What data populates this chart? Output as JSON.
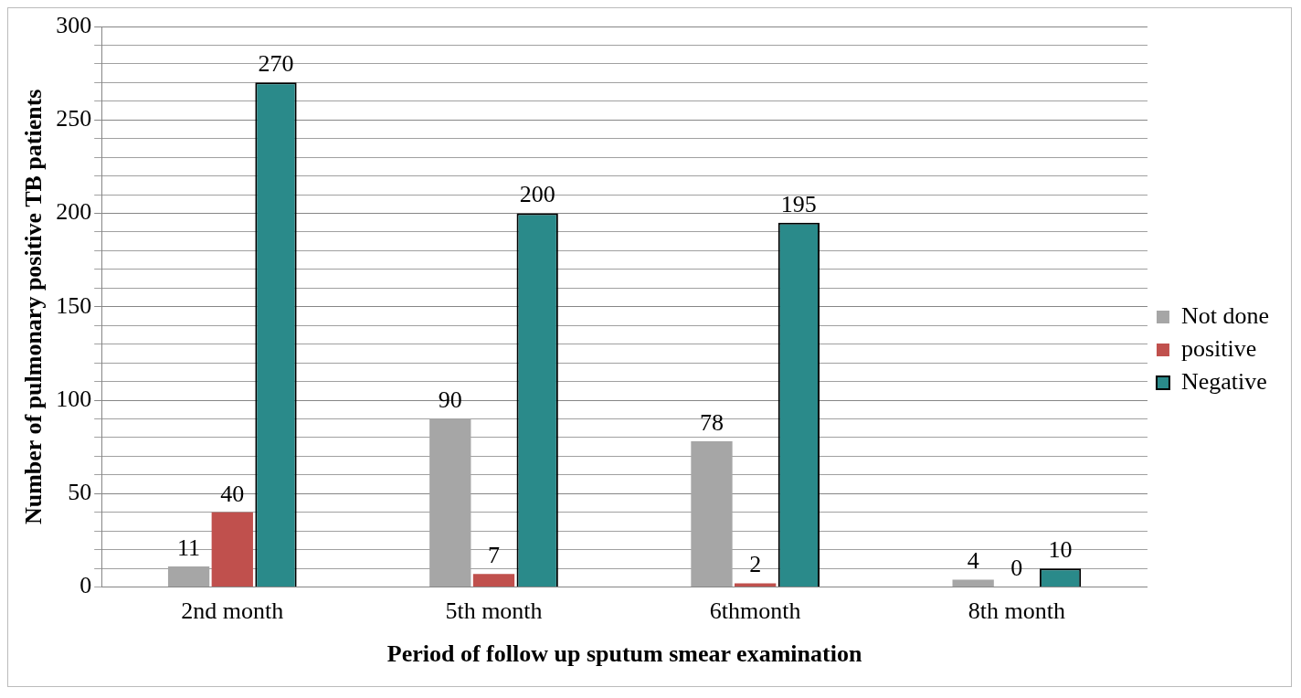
{
  "chart_data": {
    "type": "bar",
    "xlabel": "Period of follow up sputum smear examination",
    "ylabel": "Number of pulmonary positive TB patients",
    "categories": [
      "2nd month",
      "5th month",
      "6thmonth",
      "8th month"
    ],
    "series": [
      {
        "name": "Not done",
        "color": "#a6a6a6",
        "values": [
          11,
          90,
          78,
          4
        ]
      },
      {
        "name": "positive",
        "color": "#c0504d",
        "values": [
          40,
          7,
          2,
          0
        ]
      },
      {
        "name": "Negative",
        "color": "#2a8a8a",
        "values": [
          270,
          200,
          195,
          10
        ]
      }
    ],
    "ylim": [
      0,
      300
    ],
    "yticks": [
      0,
      {
        "value": 10,
        "label": null
      },
      {
        "value": 20,
        "label": null
      },
      {
        "value": 30,
        "label": null
      },
      {
        "value": 40,
        "label": null
      },
      50,
      {
        "value": 60,
        "label": null
      },
      {
        "value": 70,
        "label": null
      },
      {
        "value": 80,
        "label": null
      },
      {
        "value": 90,
        "label": null
      },
      100,
      {
        "value": 110,
        "label": null
      },
      {
        "value": 120,
        "label": null
      },
      {
        "value": 130,
        "label": null
      },
      {
        "value": 140,
        "label": null
      },
      150,
      {
        "value": 160,
        "label": null
      },
      {
        "value": 170,
        "label": null
      },
      {
        "value": 180,
        "label": null
      },
      {
        "value": 190,
        "label": null
      },
      200,
      {
        "value": 210,
        "label": null
      },
      {
        "value": 220,
        "label": null
      },
      {
        "value": 230,
        "label": null
      },
      {
        "value": 240,
        "label": null
      },
      250,
      {
        "value": 260,
        "label": null
      },
      {
        "value": 270,
        "label": null
      },
      {
        "value": 280,
        "label": null
      },
      {
        "value": 290,
        "label": null
      },
      300
    ],
    "grid": "y",
    "legend": "right",
    "data_labels": true
  }
}
